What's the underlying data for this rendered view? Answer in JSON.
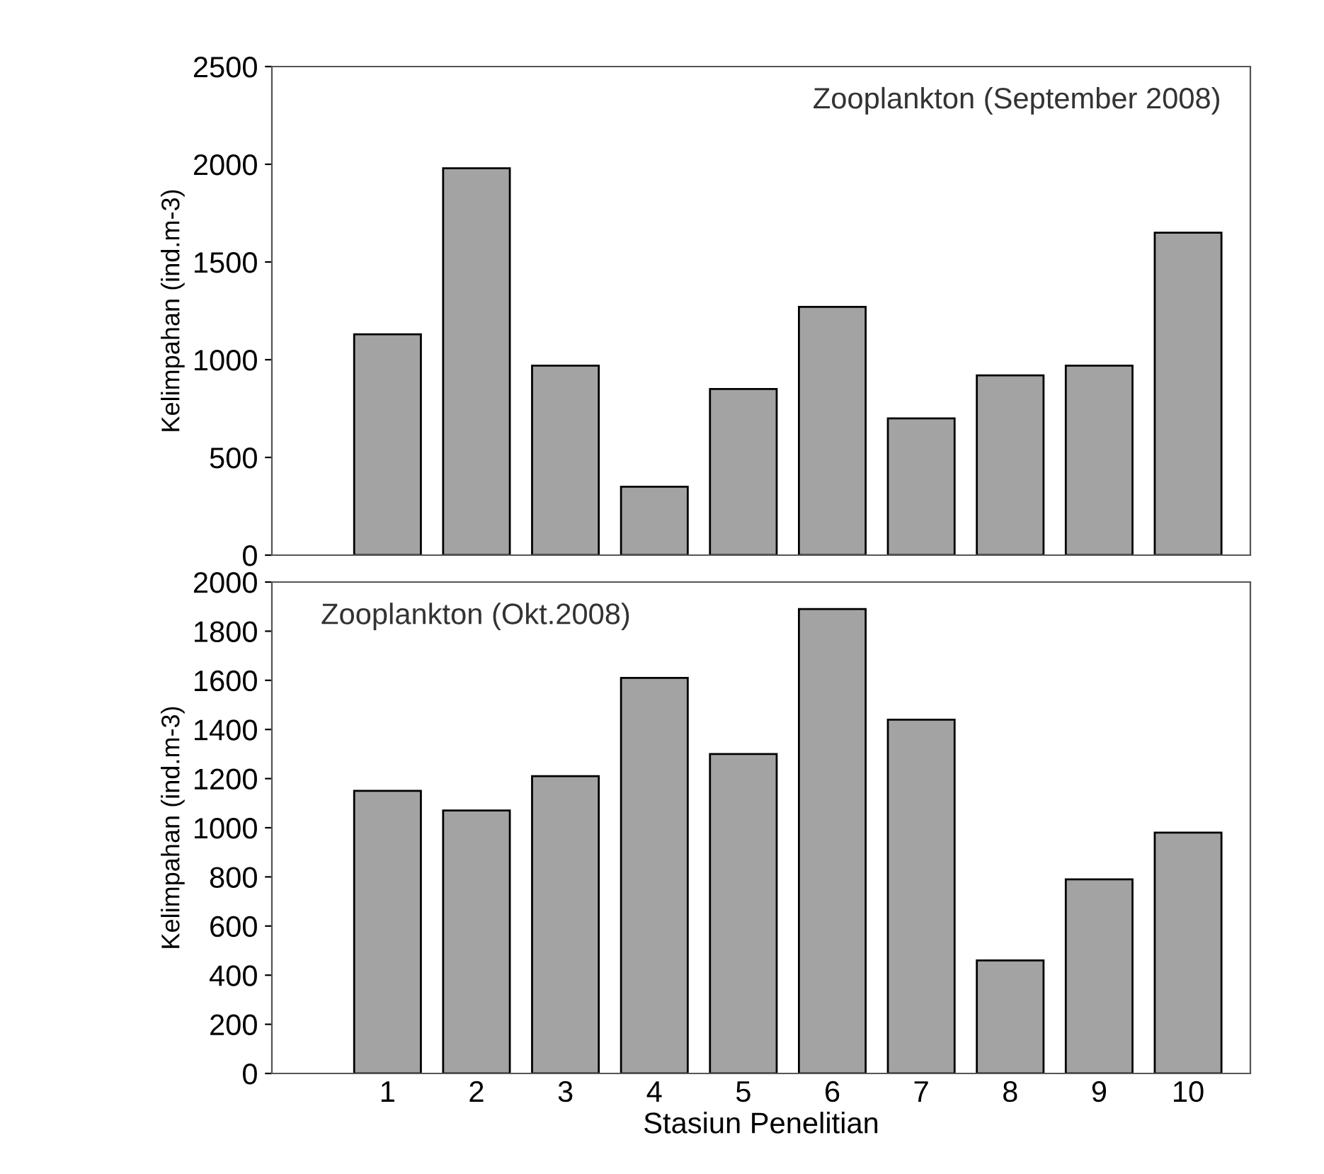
{
  "chart_data": [
    {
      "type": "bar",
      "title": "Zooplankton (September 2008)",
      "ylabel": "Kelimpahan (ind.m-3)",
      "categories": [
        "1",
        "2",
        "3",
        "4",
        "5",
        "6",
        "7",
        "8",
        "9",
        "10"
      ],
      "values": [
        1130,
        1980,
        970,
        350,
        850,
        1270,
        700,
        920,
        970,
        1650
      ],
      "color": "#a3a3a3",
      "ylim": [
        0,
        2500
      ],
      "yticks": [
        0,
        500,
        1000,
        1500,
        2000,
        2500
      ],
      "tick_labels": "y",
      "grid": false,
      "legend": false
    },
    {
      "type": "bar",
      "title": "Zooplankton (Okt.2008)",
      "ylabel": "Kelimpahan (ind.m-3)",
      "xlabel": "Stasiun Penelitian",
      "categories": [
        "1",
        "2",
        "3",
        "4",
        "5",
        "6",
        "7",
        "8",
        "9",
        "10"
      ],
      "values": [
        1150,
        1070,
        1210,
        1610,
        1300,
        1890,
        1440,
        460,
        790,
        980
      ],
      "color": "#a3a3a3",
      "ylim": [
        0,
        2000
      ],
      "yticks": [
        0,
        200,
        400,
        600,
        800,
        1000,
        1200,
        1400,
        1600,
        1800,
        2000
      ],
      "grid": false,
      "legend": false
    }
  ]
}
